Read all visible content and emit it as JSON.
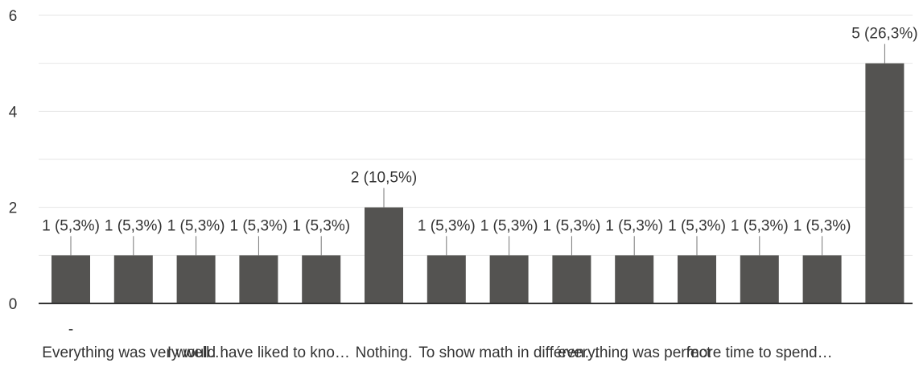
{
  "chart_data": {
    "type": "bar",
    "categories": [
      "-",
      "Everything was very well…",
      "",
      "I would have liked to kno…",
      "",
      "Nothing.",
      "",
      "To show math in différen…",
      "",
      "everything was perfect",
      "",
      "more time to spend…",
      "",
      ""
    ],
    "values": [
      1,
      1,
      1,
      1,
      1,
      2,
      1,
      1,
      1,
      1,
      1,
      1,
      1,
      5
    ],
    "data_labels": [
      "1 (5,3%)",
      "1 (5,3%)",
      "1 (5,3%)",
      "1 (5,3%)",
      "1 (5,3%)",
      "2 (10,5%)",
      "1 (5,3%)",
      "1 (5,3%)",
      "1 (5,3%)",
      "1 (5,3%)",
      "1 (5,3%)",
      "1 (5,3%)",
      "1 (5,3%)",
      "5 (26,3%)"
    ],
    "yticks": [
      "0",
      "2",
      "4",
      "6"
    ],
    "ylim": [
      0,
      6
    ],
    "grid": true,
    "bar_color": "#545351",
    "title": "",
    "xlabel": "",
    "ylabel": ""
  }
}
